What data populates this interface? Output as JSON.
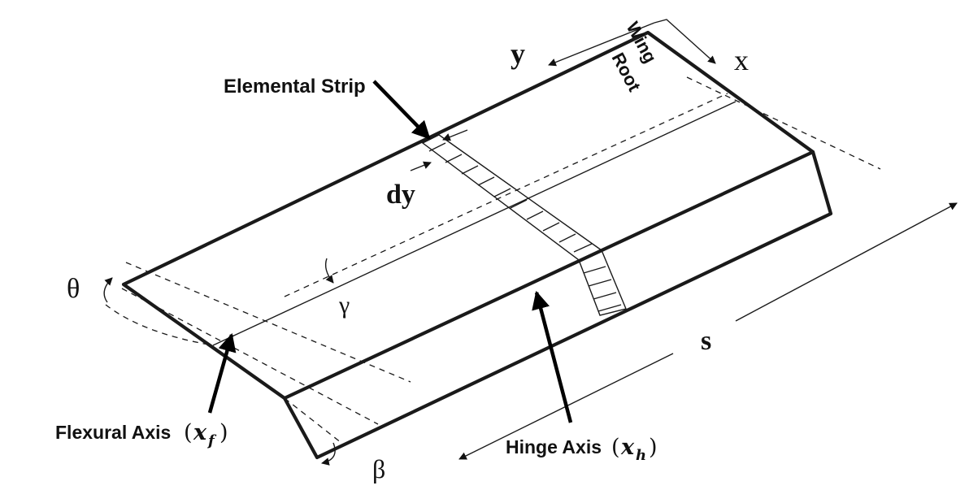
{
  "labels": {
    "elemental_strip": "Elemental Strip",
    "y_axis": "y",
    "x_axis": "x",
    "wing_root_line1": "Wing",
    "wing_root_line2": "Root",
    "dy": "dy",
    "theta": "θ",
    "gamma": "γ",
    "s": "s",
    "beta": "β",
    "flexural_axis_text": "Flexural Axis",
    "flexural_axis_symbol": "x",
    "flexural_axis_subscript": "f",
    "hinge_axis_text": "Hinge Axis",
    "hinge_axis_symbol": "x",
    "hinge_axis_subscript": "h",
    "open_paren": "(",
    "close_paren": ")"
  }
}
